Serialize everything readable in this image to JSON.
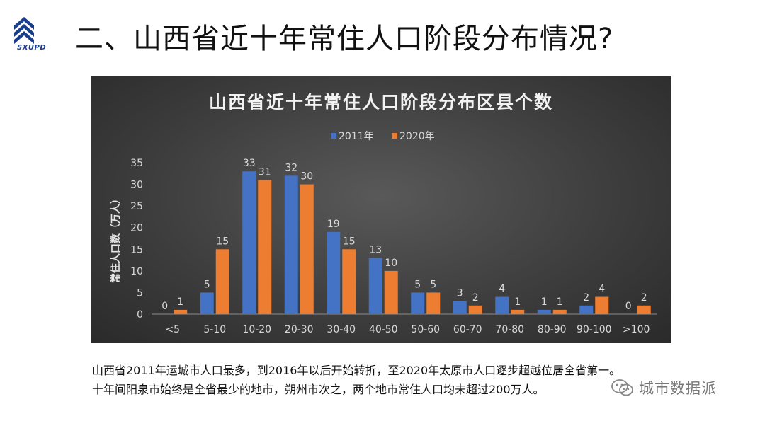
{
  "header": {
    "logo_text": "SXUPD",
    "title": "二、山西省近十年常住人口阶段分布情况?"
  },
  "colors": {
    "series_2011": "#4472C4",
    "series_2020": "#ED7D31",
    "logo": "#1b3f8f"
  },
  "chart_data": {
    "type": "bar",
    "title": "山西省近十年常住人口阶段分布区县个数",
    "ylabel": "常住人口数（万人）",
    "xlabel": "",
    "categories": [
      "<5",
      "5-10",
      "10-20",
      "20-30",
      "30-40",
      "40-50",
      "50-60",
      "60-70",
      "70-80",
      "80-90",
      "90-100",
      ">100"
    ],
    "series": [
      {
        "name": "2011年",
        "values": [
          0,
          5,
          33,
          32,
          19,
          13,
          5,
          3,
          4,
          1,
          2,
          0
        ]
      },
      {
        "name": "2020年",
        "values": [
          1,
          15,
          31,
          30,
          15,
          10,
          5,
          2,
          1,
          1,
          4,
          2
        ]
      }
    ],
    "ylim": [
      0,
      35
    ],
    "yticks": [
      0,
      5,
      10,
      15,
      20,
      25,
      30,
      35
    ],
    "legend": "top-center",
    "grid": false,
    "data_labels": true
  },
  "description": {
    "line1": "山西省2011年运城市人口最多，到2016年以后开始转折，至2020年太原市人口逐步超越位居全省第一。",
    "line2": "十年间阳泉市始终是全省最少的地市，朔州市次之，两个地市常住人口均未超过200万人。"
  },
  "watermark": {
    "icon": "wechat-icon",
    "text": "城市数据派"
  }
}
